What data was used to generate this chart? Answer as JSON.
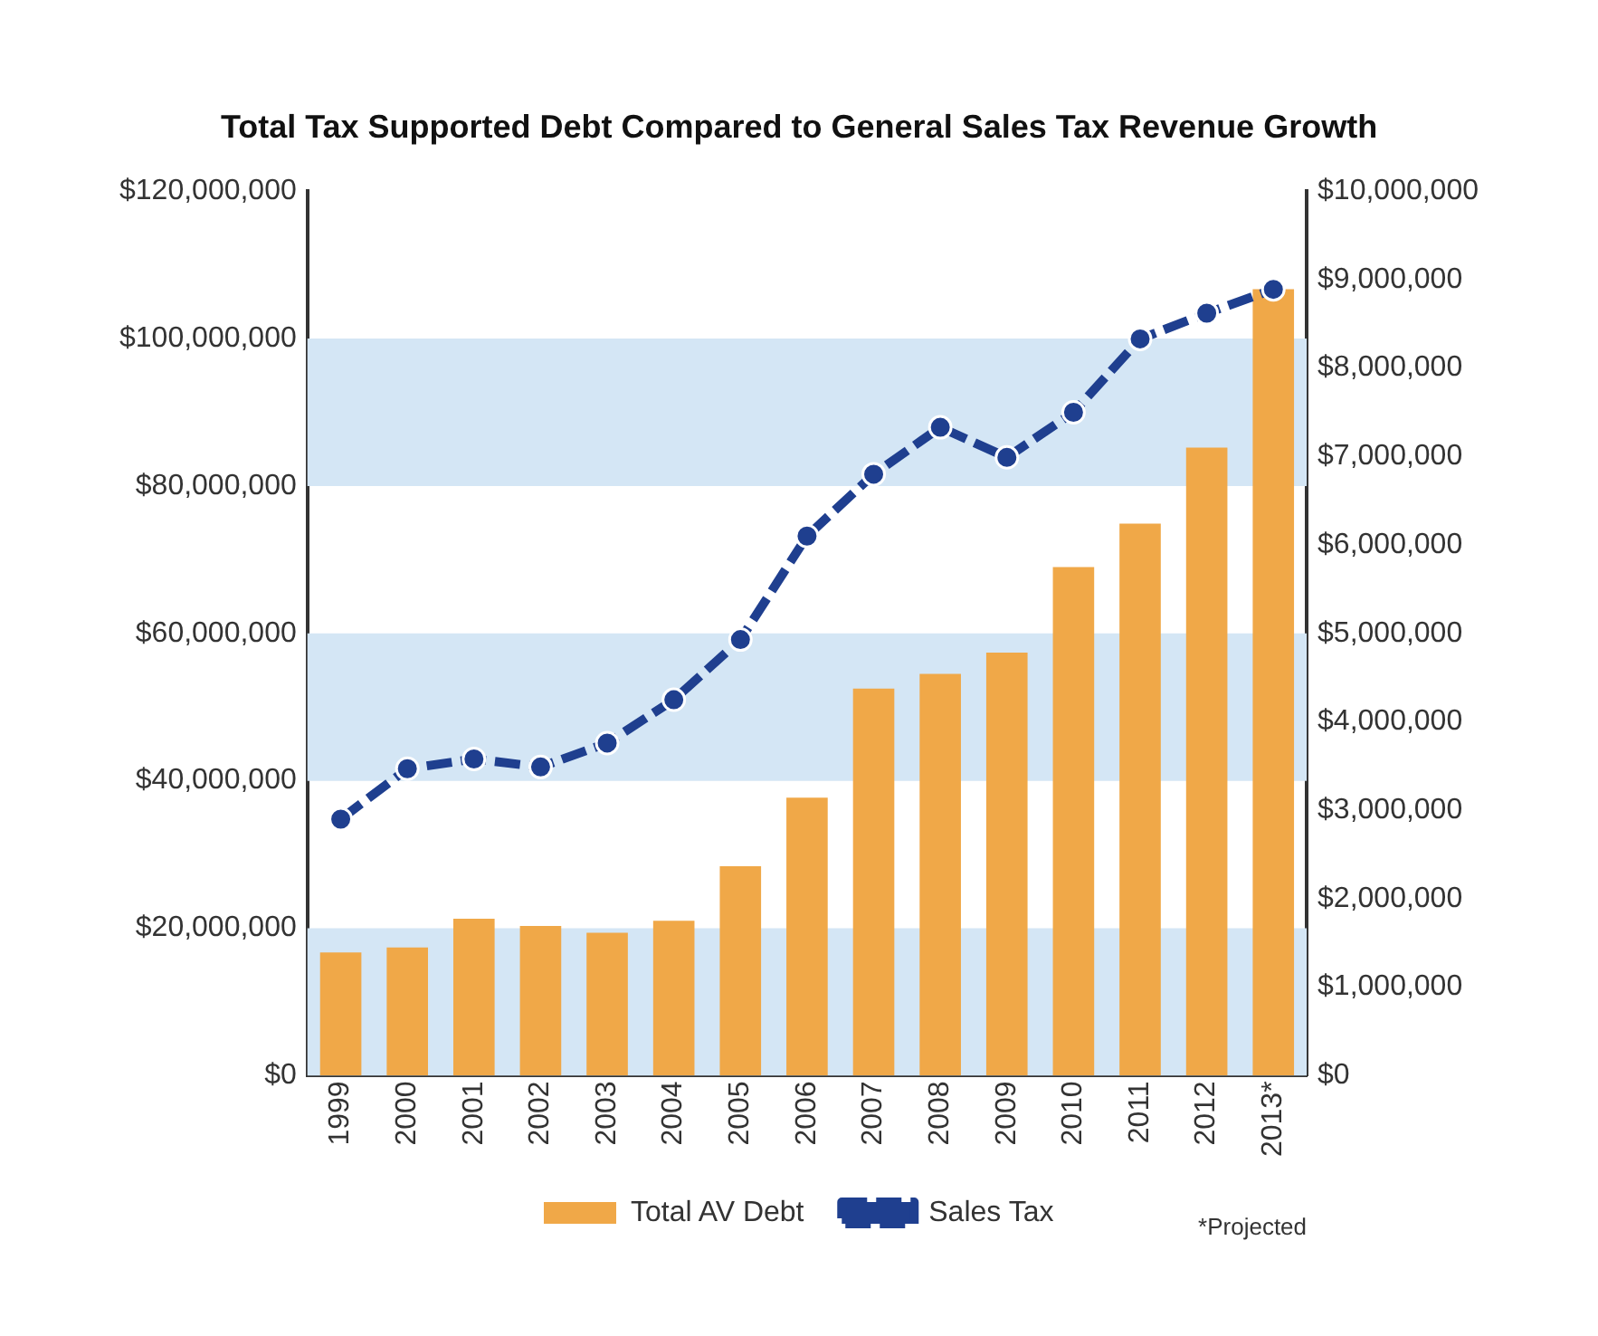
{
  "chart_data": {
    "type": "bar",
    "title": "Total Tax Supported Debt Compared to General Sales Tax Revenue Growth",
    "categories": [
      "1999",
      "2000",
      "2001",
      "2002",
      "2003",
      "2004",
      "2005",
      "2006",
      "2007",
      "2008",
      "2009",
      "2010",
      "2011",
      "2012",
      "2013*"
    ],
    "series": [
      {
        "name": "Total AV Debt",
        "color": "#f0a848",
        "values": [
          16700000,
          17400000,
          21300000,
          20300000,
          19400000,
          21000000,
          28400000,
          37700000,
          52500000,
          54500000,
          57400000,
          69000000,
          74900000,
          85200000,
          106700000
        ]
      },
      {
        "name": "Sales Tax",
        "type": "line",
        "axis": "y2",
        "color": "#1f3f8f",
        "values": [
          2900000,
          3470000,
          3580000,
          3490000,
          3760000,
          4250000,
          4930000,
          6100000,
          6800000,
          7330000,
          6990000,
          7500000,
          8330000,
          8620000,
          8890000
        ]
      }
    ],
    "ylim": [
      0,
      120000000
    ],
    "yticks": [
      {
        "value": 0,
        "label": "$0"
      },
      {
        "value": 20000000,
        "label": "$20,000,000"
      },
      {
        "value": 40000000,
        "label": "$40,000,000"
      },
      {
        "value": 60000000,
        "label": "$60,000,000"
      },
      {
        "value": 80000000,
        "label": "$80,000,000"
      },
      {
        "value": 100000000,
        "label": "$100,000,000"
      },
      {
        "value": 120000000,
        "label": "$120,000,000"
      }
    ],
    "y2lim": [
      0,
      10000000
    ],
    "y2ticks": [
      {
        "value": 0,
        "label": "$0"
      },
      {
        "value": 1000000,
        "label": "$1,000,000"
      },
      {
        "value": 2000000,
        "label": "$2,000,000"
      },
      {
        "value": 3000000,
        "label": "$3,000,000"
      },
      {
        "value": 4000000,
        "label": "$4,000,000"
      },
      {
        "value": 5000000,
        "label": "$5,000,000"
      },
      {
        "value": 6000000,
        "label": "$6,000,000"
      },
      {
        "value": 7000000,
        "label": "$7,000,000"
      },
      {
        "value": 8000000,
        "label": "$8,000,000"
      },
      {
        "value": 9000000,
        "label": "$9,000,000"
      },
      {
        "value": 10000000,
        "label": "$10,000,000"
      }
    ],
    "bands": [
      {
        "axis": "y",
        "from": 0,
        "to": 20000000,
        "color": "#d4e6f5"
      },
      {
        "axis": "y",
        "from": 40000000,
        "to": 60000000,
        "color": "#d4e6f5"
      },
      {
        "axis": "y",
        "from": 80000000,
        "to": 100000000,
        "color": "#d4e6f5"
      }
    ],
    "annotations": [
      "*Projected"
    ],
    "marker": "circle",
    "line_style": "dashed",
    "grid": false,
    "legend": "bottom"
  }
}
